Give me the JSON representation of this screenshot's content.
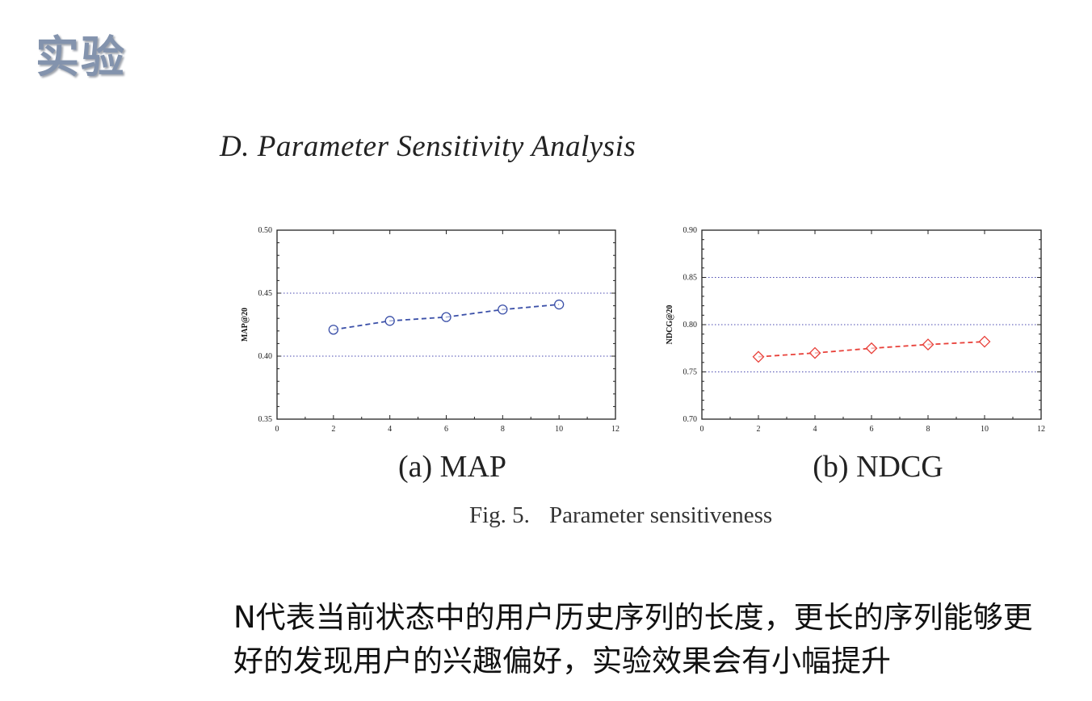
{
  "slide": {
    "title": "实验"
  },
  "section_heading": "D.  Parameter Sensitivity Analysis",
  "figure": {
    "caption_number": "Fig. 5.",
    "caption_text": "Parameter sensitiveness",
    "colors": {
      "map": "#3a4fa8",
      "ndcg": "#e8413a",
      "grid": "#4a4ab0"
    }
  },
  "chart_data": [
    {
      "type": "line",
      "subcaption": "(a) MAP",
      "ylabel": "MAP@20",
      "xlabel": "",
      "x": [
        2,
        4,
        6,
        8,
        10
      ],
      "series": [
        {
          "values": [
            0.421,
            0.428,
            0.431,
            0.437,
            0.441
          ],
          "marker": "circle",
          "line": "dashed",
          "color": "#3a4fa8"
        }
      ],
      "xlim": [
        0,
        12
      ],
      "ylim": [
        0.35,
        0.5
      ],
      "xticks": [
        "0",
        "2",
        "4",
        "6",
        "8",
        "10",
        "12"
      ],
      "yticks": [
        "0.35",
        "0.40",
        "0.45",
        "0.50"
      ],
      "ytick_values": [
        0.35,
        0.4,
        0.45,
        0.5
      ],
      "grid": "horizontal-dotted"
    },
    {
      "type": "line",
      "subcaption": "(b) NDCG",
      "ylabel": "NDCG@20",
      "xlabel": "",
      "x": [
        2,
        4,
        6,
        8,
        10
      ],
      "series": [
        {
          "values": [
            0.766,
            0.77,
            0.775,
            0.779,
            0.782
          ],
          "marker": "diamond",
          "line": "dashed",
          "color": "#e8413a"
        }
      ],
      "xlim": [
        0,
        12
      ],
      "ylim": [
        0.7,
        0.9
      ],
      "xticks": [
        "0",
        "2",
        "4",
        "6",
        "8",
        "10",
        "12"
      ],
      "yticks": [
        "0.70",
        "0.75",
        "0.80",
        "0.85",
        "0.90"
      ],
      "ytick_values": [
        0.7,
        0.75,
        0.8,
        0.85,
        0.9
      ],
      "grid": "horizontal-dotted"
    }
  ],
  "body_text": {
    "line1": "N代表当前状态中的用户历史序列的长度，更长的序列能够更",
    "line2": "好的发现用户的兴趣偏好，实验效果会有小幅提升"
  }
}
